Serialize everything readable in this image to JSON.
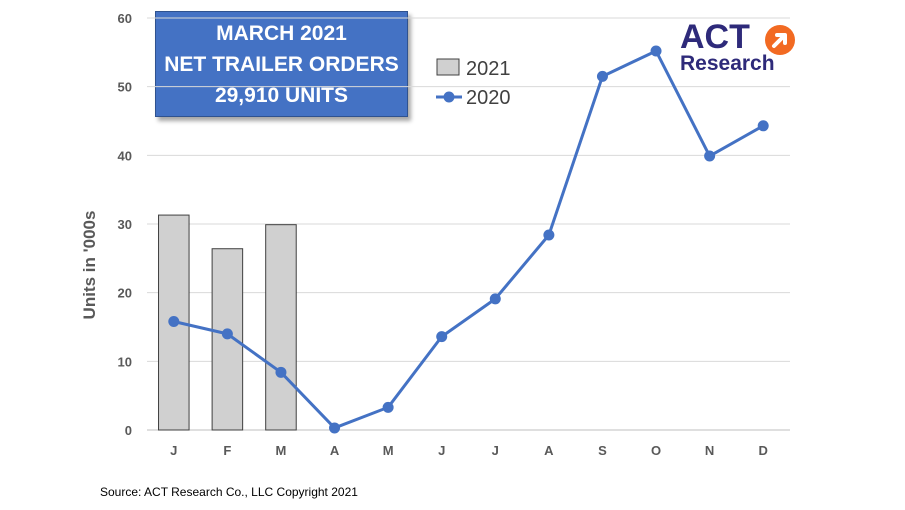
{
  "title_box": {
    "line1": "MARCH 2021",
    "line2": "NET TRAILER ORDERS",
    "line3": "29,910 UNITS"
  },
  "logo": {
    "act": "ACT",
    "research": "Research",
    "arrow_icon": "arrow-up-right-circle-icon",
    "brand_color": "#2e2a7a",
    "accent_color": "#f26a22"
  },
  "source": "Source: ACT Research Co., LLC  Copyright 2021",
  "chart_data": {
    "type": "bar+line",
    "categories": [
      "J",
      "F",
      "M",
      "A",
      "M",
      "J",
      "J",
      "A",
      "S",
      "O",
      "N",
      "D"
    ],
    "series": [
      {
        "name": "2021",
        "type": "bar",
        "color": "#d0d0d0",
        "values": [
          31.3,
          26.4,
          29.9,
          null,
          null,
          null,
          null,
          null,
          null,
          null,
          null,
          null
        ]
      },
      {
        "name": "2020",
        "type": "line",
        "color": "#4472c4",
        "values": [
          15.8,
          14.0,
          8.4,
          0.3,
          3.3,
          13.6,
          19.1,
          28.4,
          51.5,
          55.2,
          39.9,
          44.3
        ]
      }
    ],
    "ylabel": "Units in '000s",
    "ylim": [
      0,
      60
    ],
    "yticks": [
      0,
      10,
      20,
      30,
      40,
      50,
      60
    ],
    "grid": true,
    "legend_position": "top-center"
  }
}
